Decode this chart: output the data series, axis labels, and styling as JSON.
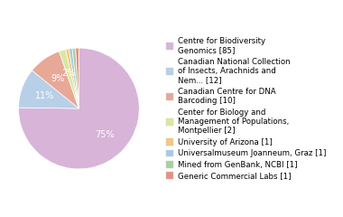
{
  "values": [
    85,
    12,
    10,
    2,
    1,
    1,
    1,
    1
  ],
  "colors": [
    "#d8b4d8",
    "#b8cfe8",
    "#e8a898",
    "#d8e8a0",
    "#f4c878",
    "#a8c8e8",
    "#a8d0a0",
    "#e89080"
  ],
  "legend_labels": [
    "Centre for Biodiversity\nGenomics [85]",
    "Canadian National Collection\nof Insects, Arachnids and\nNem... [12]",
    "Canadian Centre for DNA\nBarcoding [10]",
    "Center for Biology and\nManagement of Populations,\nMontpellier [2]",
    "University of Arizona [1]",
    "Universalmuseum Joanneum, Graz [1]",
    "Mined from GenBank, NCBI [1]",
    "Generic Commercial Labs [1]"
  ],
  "startangle": 90,
  "pct_font_size": 7,
  "legend_font_size": 6.2,
  "bg_color": "#ffffff"
}
